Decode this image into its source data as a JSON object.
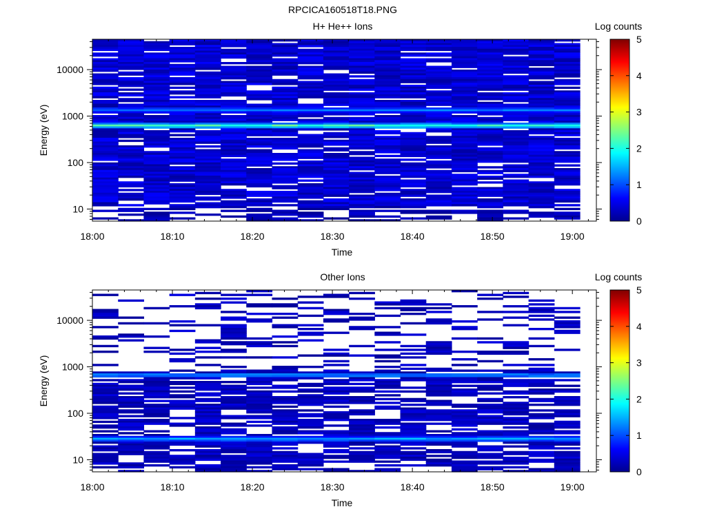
{
  "figure_title": "RPCICA160518T18.PNG",
  "chart_data": [
    {
      "type": "heatmap",
      "title": "H+ He++ Ions",
      "xlabel": "Time",
      "ylabel": "Energy (eV)",
      "yscale": "log",
      "xlim": [
        "18:00",
        "19:03"
      ],
      "ylim": [
        5.5,
        45000
      ],
      "x_ticks": [
        "18:00",
        "18:10",
        "18:20",
        "18:30",
        "18:40",
        "18:50",
        "19:00"
      ],
      "y_ticks": [
        "10",
        "100",
        "1000",
        "10000"
      ],
      "colorbar": {
        "label": "Log counts",
        "range": [
          0,
          5
        ],
        "ticks": [
          "0",
          "1",
          "2",
          "3",
          "4",
          "5"
        ]
      },
      "time_bins": 19,
      "energy_bins": 96,
      "dominant_bands": [
        {
          "energy_eV": 620,
          "log_counts": 2.4
        },
        {
          "energy_eV": 1350,
          "log_counts": 1.3
        }
      ],
      "background_log_counts": 0.4,
      "low_energy_cutoff_eV": 12
    },
    {
      "type": "heatmap",
      "title": "Other Ions",
      "xlabel": "Time",
      "ylabel": "Energy (eV)",
      "yscale": "log",
      "xlim": [
        "18:00",
        "19:03"
      ],
      "ylim": [
        5.5,
        45000
      ],
      "x_ticks": [
        "18:00",
        "18:10",
        "18:20",
        "18:30",
        "18:40",
        "18:50",
        "19:00"
      ],
      "y_ticks": [
        "10",
        "100",
        "1000",
        "10000"
      ],
      "colorbar": {
        "label": "Log counts",
        "range": [
          0,
          5
        ],
        "ticks": [
          "0",
          "1",
          "2",
          "3",
          "4",
          "5"
        ]
      },
      "time_bins": 19,
      "energy_bins": 96,
      "dominant_bands": [
        {
          "energy_eV": 660,
          "log_counts": 1.5
        },
        {
          "energy_eV": 28,
          "log_counts": 1.6
        }
      ],
      "background_log_counts": 0.3,
      "low_energy_cutoff_eV": 7
    }
  ]
}
